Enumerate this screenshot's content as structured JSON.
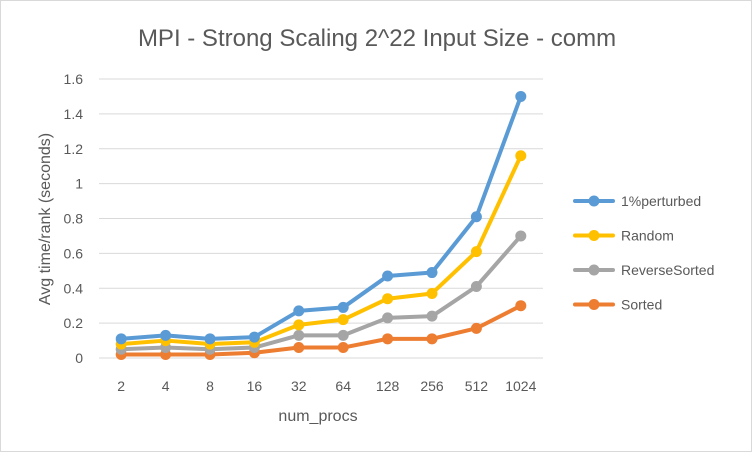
{
  "chart_data": {
    "type": "line",
    "title": "MPI - Strong Scaling 2^22 Input Size -  comm",
    "xlabel": "num_procs",
    "ylabel": "Avg time/rank (seconds)",
    "categories": [
      "2",
      "4",
      "8",
      "16",
      "32",
      "64",
      "128",
      "256",
      "512",
      "1024"
    ],
    "ylim": [
      0,
      1.6
    ],
    "yticks": [
      0,
      0.2,
      0.4,
      0.6,
      0.8,
      1,
      1.2,
      1.4,
      1.6
    ],
    "ytick_labels": [
      "0",
      "0.2",
      "0.4",
      "0.6",
      "0.8",
      "1",
      "1.2",
      "1.4",
      "1.6"
    ],
    "grid": "horizontal",
    "legend_position": "right",
    "series": [
      {
        "name": "1%perturbed",
        "color": "#5b9bd5",
        "values": [
          0.11,
          0.13,
          0.11,
          0.12,
          0.27,
          0.29,
          0.47,
          0.49,
          0.81,
          1.5
        ]
      },
      {
        "name": "Random",
        "color": "#ffc000",
        "values": [
          0.08,
          0.1,
          0.08,
          0.09,
          0.19,
          0.22,
          0.34,
          0.37,
          0.61,
          1.16
        ]
      },
      {
        "name": "ReverseSorted",
        "color": "#a5a5a5",
        "values": [
          0.05,
          0.06,
          0.05,
          0.06,
          0.13,
          0.13,
          0.23,
          0.24,
          0.41,
          0.7
        ]
      },
      {
        "name": "Sorted",
        "color": "#ed7d31",
        "values": [
          0.02,
          0.02,
          0.02,
          0.03,
          0.06,
          0.06,
          0.11,
          0.11,
          0.17,
          0.3
        ]
      }
    ]
  }
}
